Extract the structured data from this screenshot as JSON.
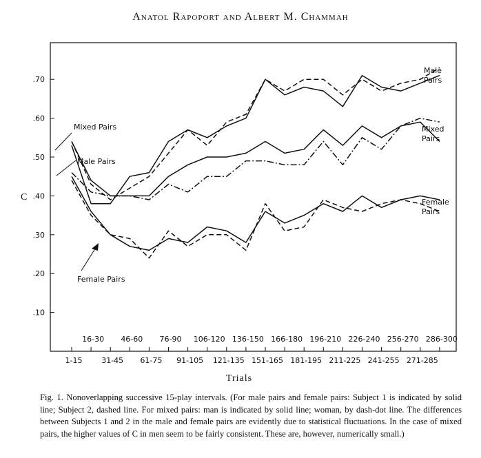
{
  "header": "Anatol Rapoport and Albert M. Chammah",
  "caption": "Fig. 1. Nonoverlapping successive 15-play intervals. (For male pairs and female pairs: Subject 1 is indicated by solid line; Subject 2, dashed line. For mixed pairs: man is indicated by solid line; woman, by dash-dot line. The differences between Subjects 1 and 2 in the male and female pairs are evidently due to statistical fluctuations. In the case of mixed pairs, the higher values of C in men seem to be fairly consistent. These are, however, numerically small.)",
  "chart_data": {
    "type": "line",
    "xlabel": "Trials",
    "ylabel": "C",
    "ylim": [
      0,
      0.8
    ],
    "y_ticks": [
      ".10",
      ".20",
      ".30",
      ".40",
      ".50",
      ".60",
      ".70"
    ],
    "y_tick_values": [
      0.1,
      0.2,
      0.3,
      0.4,
      0.5,
      0.6,
      0.7
    ],
    "categories": [
      "1-15",
      "16-30",
      "31-45",
      "46-60",
      "61-75",
      "76-90",
      "91-105",
      "106-120",
      "121-135",
      "136-150",
      "151-165",
      "166-180",
      "181-195",
      "196-210",
      "211-225",
      "226-240",
      "241-255",
      "256-270",
      "271-285",
      "286-300"
    ],
    "x_labels_odd": [
      "1-15",
      "31-45",
      "61-75",
      "91-105",
      "121-135",
      "151-165",
      "181-195",
      "211-225",
      "241-255",
      "271-285"
    ],
    "x_labels_even": [
      "16-30",
      "46-60",
      "76-90",
      "106-120",
      "136-150",
      "166-180",
      "196-210",
      "226-240",
      "256-270",
      "286-300"
    ],
    "grid": false,
    "annotations": {
      "male_right": [
        "Male",
        "Pairs"
      ],
      "mixed_right": [
        "Mixed",
        "Pairs"
      ],
      "female_right": [
        "Female",
        "Pairs"
      ],
      "mixed_left": "Mixed Pairs",
      "male_left": "Male Pairs",
      "female_left": "Female Pairs"
    },
    "series": [
      {
        "group": "male",
        "style": "solid",
        "values": [
          0.53,
          0.38,
          0.38,
          0.45,
          0.46,
          0.54,
          0.57,
          0.55,
          0.58,
          0.6,
          0.7,
          0.66,
          0.68,
          0.67,
          0.63,
          0.71,
          0.68,
          0.67,
          0.69,
          0.71
        ]
      },
      {
        "group": "male",
        "style": "dashed",
        "values": [
          0.54,
          0.43,
          0.39,
          0.42,
          0.45,
          0.51,
          0.57,
          0.53,
          0.59,
          0.61,
          0.7,
          0.67,
          0.7,
          0.7,
          0.66,
          0.7,
          0.67,
          0.69,
          0.7,
          0.73
        ]
      },
      {
        "group": "mixed",
        "style": "solid",
        "values": [
          0.54,
          0.44,
          0.4,
          0.4,
          0.4,
          0.45,
          0.48,
          0.5,
          0.5,
          0.51,
          0.54,
          0.51,
          0.52,
          0.57,
          0.53,
          0.58,
          0.55,
          0.58,
          0.59,
          0.54
        ]
      },
      {
        "group": "mixed",
        "style": "dashdot",
        "values": [
          0.46,
          0.41,
          0.4,
          0.4,
          0.39,
          0.43,
          0.41,
          0.45,
          0.45,
          0.49,
          0.49,
          0.48,
          0.48,
          0.54,
          0.48,
          0.55,
          0.52,
          0.58,
          0.6,
          0.59
        ]
      },
      {
        "group": "female",
        "style": "solid",
        "values": [
          0.45,
          0.36,
          0.3,
          0.27,
          0.26,
          0.29,
          0.28,
          0.32,
          0.31,
          0.28,
          0.36,
          0.33,
          0.35,
          0.38,
          0.36,
          0.4,
          0.37,
          0.39,
          0.4,
          0.39
        ]
      },
      {
        "group": "female",
        "style": "dashed",
        "values": [
          0.44,
          0.35,
          0.3,
          0.29,
          0.24,
          0.31,
          0.27,
          0.3,
          0.3,
          0.26,
          0.38,
          0.31,
          0.32,
          0.39,
          0.37,
          0.36,
          0.38,
          0.39,
          0.38,
          0.36
        ]
      }
    ]
  }
}
